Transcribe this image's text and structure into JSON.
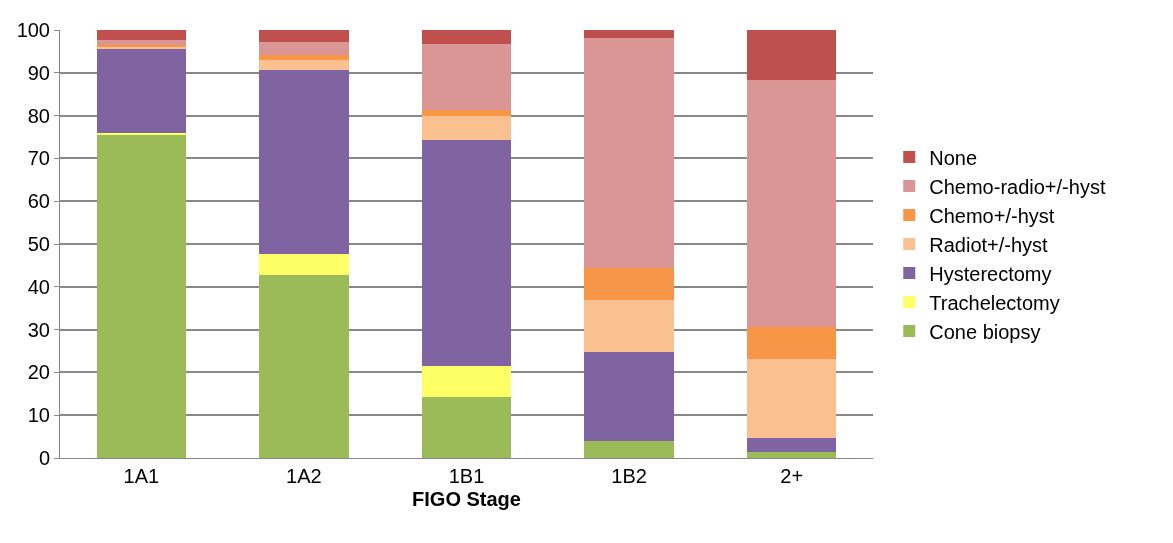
{
  "chart_data": {
    "type": "bar",
    "stacked": true,
    "xlabel": "FIGO Stage",
    "categories": [
      "1A1",
      "1A2",
      "1B1",
      "1B2",
      "2+"
    ],
    "series": [
      {
        "name": "Cone biopsy",
        "color": "#9bbb59",
        "values": [
          75.5,
          42.7,
          14.2,
          3.9,
          1.4
        ]
      },
      {
        "name": "Trachelectomy",
        "color": "#ffff66",
        "values": [
          0.5,
          5.0,
          7.4,
          0,
          0
        ]
      },
      {
        "name": "Hysterectomy",
        "color": "#8064a2",
        "values": [
          19.6,
          43.0,
          52.7,
          20.9,
          3.2
        ]
      },
      {
        "name": "Radiot+/-hyst",
        "color": "#fac090",
        "values": [
          0.5,
          2.3,
          5.7,
          12.1,
          18.6
        ]
      },
      {
        "name": "Chemo+/-hyst",
        "color": "#f79646",
        "values": [
          0.5,
          1.2,
          1.4,
          7.6,
          7.4
        ]
      },
      {
        "name": "Chemo-radio+/-hyst",
        "color": "#d99694",
        "values": [
          1.1,
          3.0,
          15.4,
          53.7,
          57.8
        ]
      },
      {
        "name": "None",
        "color": "#c0504d",
        "values": [
          2.3,
          2.8,
          3.2,
          1.8,
          11.6
        ]
      }
    ],
    "ylim": [
      0,
      100
    ],
    "yticks": [
      0,
      10,
      20,
      30,
      40,
      50,
      60,
      70,
      80,
      90,
      100
    ],
    "grid": "y",
    "legend": "right"
  }
}
